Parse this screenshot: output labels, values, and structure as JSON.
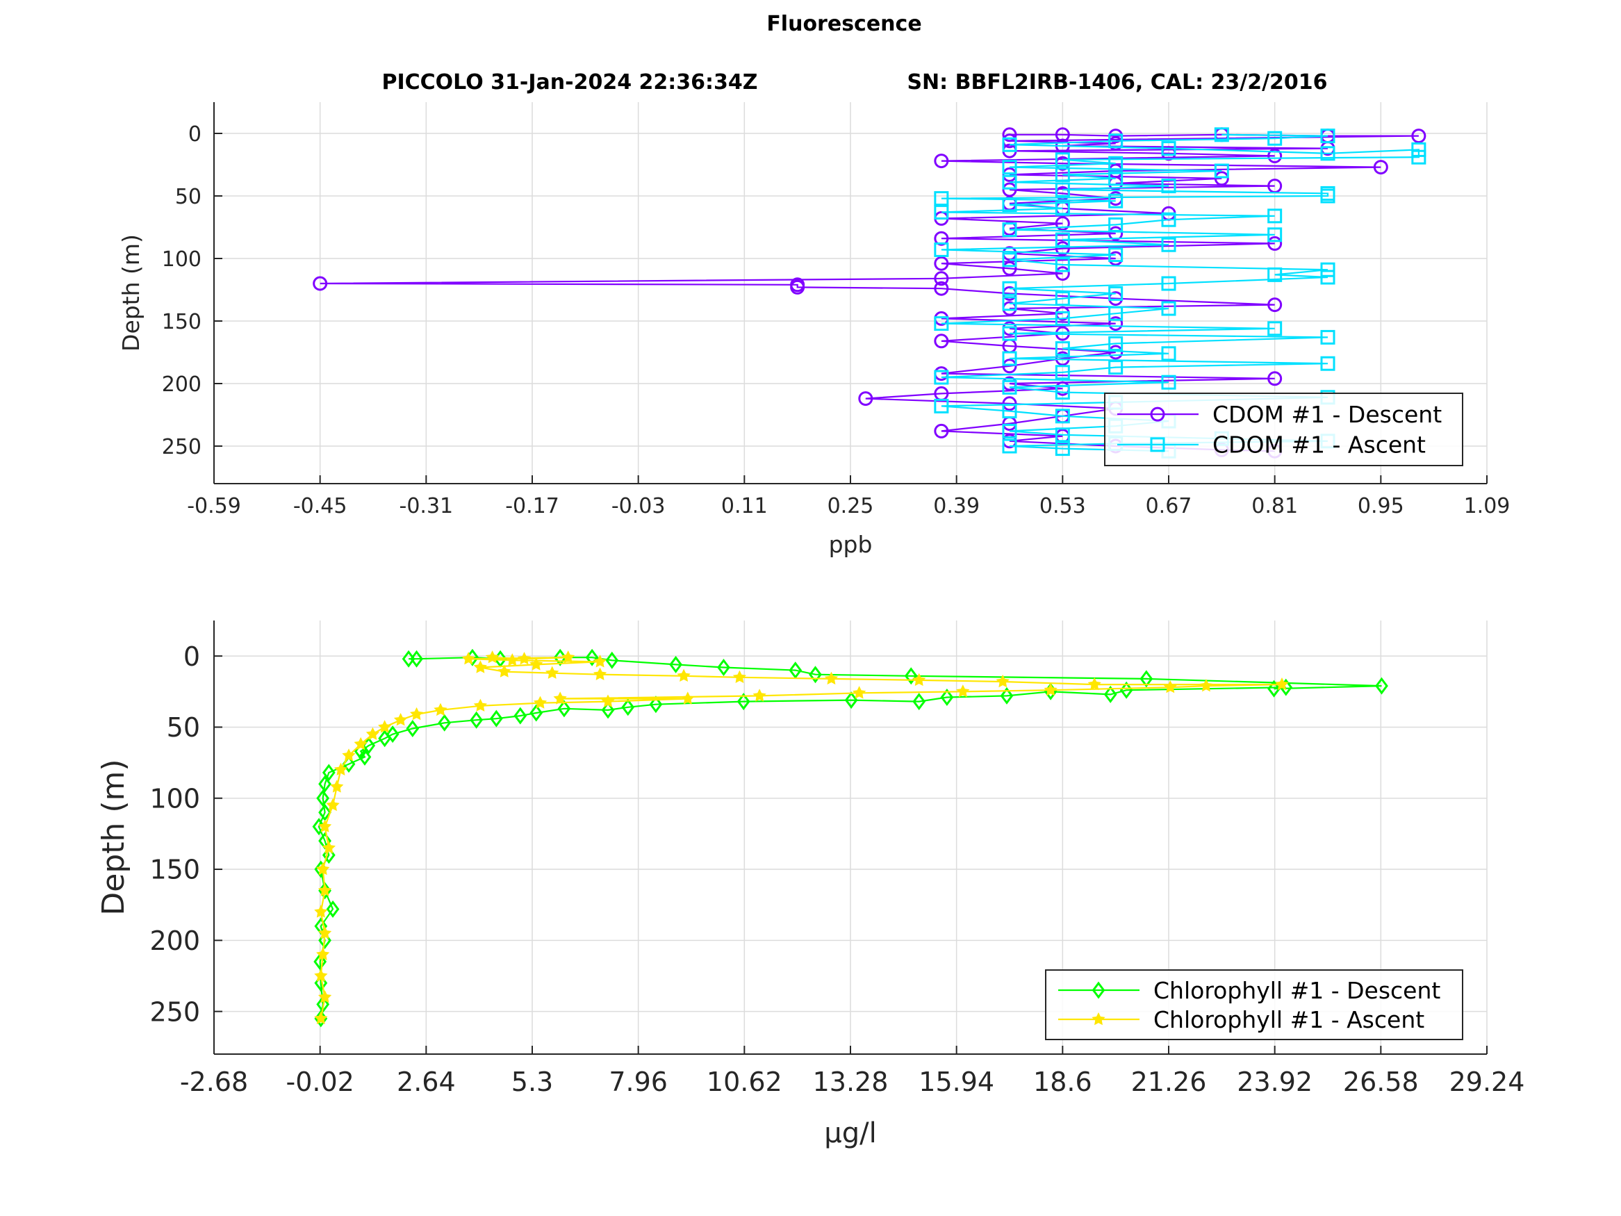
{
  "figure": {
    "title": "Fluorescence",
    "subtitle_left": "PICCOLO 31-Jan-2024 22:36:34Z",
    "subtitle_right": "SN: BBFL2IRB-1406, CAL: 23/2/2016"
  },
  "chart_data": [
    {
      "type": "line",
      "xlabel": "ppb",
      "ylabel": "Depth (m)",
      "xlim": [
        -0.59,
        1.09
      ],
      "ylim": [
        280,
        -25
      ],
      "y_reversed": true,
      "grid": true,
      "xticks": [
        "-0.59",
        "-0.45",
        "-0.31",
        "-0.17",
        "-0.03",
        "0.11",
        "0.25",
        "0.39",
        "0.53",
        "0.67",
        "0.81",
        "0.95",
        "1.09"
      ],
      "yticks": [
        "0",
        "50",
        "100",
        "150",
        "200",
        "250"
      ],
      "legend_position": "bottom-right",
      "series": [
        {
          "name": "CDOM #1 - Descent",
          "color": "#8000ff",
          "marker": "circle",
          "points": [
            [
              0.46,
              1
            ],
            [
              0.53,
              1
            ],
            [
              0.6,
              2
            ],
            [
              0.74,
              1
            ],
            [
              0.88,
              2
            ],
            [
              1.0,
              2
            ],
            [
              0.46,
              6
            ],
            [
              0.6,
              8
            ],
            [
              0.53,
              10
            ],
            [
              0.88,
              12
            ],
            [
              0.46,
              14
            ],
            [
              0.67,
              16
            ],
            [
              0.81,
              18
            ],
            [
              0.37,
              22
            ],
            [
              0.53,
              24
            ],
            [
              0.95,
              27
            ],
            [
              0.6,
              30
            ],
            [
              0.46,
              33
            ],
            [
              0.74,
              36
            ],
            [
              0.6,
              40
            ],
            [
              0.81,
              42
            ],
            [
              0.46,
              45
            ],
            [
              0.53,
              48
            ],
            [
              0.6,
              52
            ],
            [
              0.46,
              56
            ],
            [
              0.53,
              60
            ],
            [
              0.67,
              64
            ],
            [
              0.37,
              68
            ],
            [
              0.53,
              72
            ],
            [
              0.46,
              76
            ],
            [
              0.6,
              80
            ],
            [
              0.37,
              84
            ],
            [
              0.81,
              88
            ],
            [
              0.53,
              92
            ],
            [
              0.46,
              96
            ],
            [
              0.6,
              100
            ],
            [
              0.37,
              104
            ],
            [
              0.46,
              108
            ],
            [
              0.53,
              112
            ],
            [
              0.37,
              116
            ],
            [
              -0.45,
              120
            ],
            [
              0.18,
              121
            ],
            [
              0.18,
              123
            ],
            [
              0.37,
              124
            ],
            [
              0.46,
              128
            ],
            [
              0.6,
              132
            ],
            [
              0.81,
              137
            ],
            [
              0.46,
              140
            ],
            [
              0.53,
              144
            ],
            [
              0.37,
              148
            ],
            [
              0.6,
              152
            ],
            [
              0.46,
              156
            ],
            [
              0.53,
              160
            ],
            [
              0.37,
              166
            ],
            [
              0.46,
              170
            ],
            [
              0.6,
              175
            ],
            [
              0.53,
              180
            ],
            [
              0.46,
              186
            ],
            [
              0.37,
              192
            ],
            [
              0.81,
              196
            ],
            [
              0.46,
              200
            ],
            [
              0.53,
              204
            ],
            [
              0.37,
              208
            ],
            [
              0.27,
              212
            ],
            [
              0.46,
              216
            ],
            [
              0.6,
              220
            ],
            [
              0.53,
              226
            ],
            [
              0.46,
              232
            ],
            [
              0.37,
              238
            ],
            [
              0.53,
              242
            ],
            [
              0.46,
              246
            ],
            [
              0.6,
              250
            ],
            [
              0.74,
              253
            ],
            [
              0.81,
              254
            ]
          ]
        },
        {
          "name": "CDOM #1 - Ascent",
          "color": "#00e0ff",
          "marker": "square",
          "points": [
            [
              0.67,
              254
            ],
            [
              0.53,
              252
            ],
            [
              0.46,
              250
            ],
            [
              0.6,
              248
            ],
            [
              0.88,
              246
            ],
            [
              0.74,
              244
            ],
            [
              0.53,
              241
            ],
            [
              0.46,
              238
            ],
            [
              0.6,
              234
            ],
            [
              0.67,
              230
            ],
            [
              0.53,
              226
            ],
            [
              0.46,
              222
            ],
            [
              0.37,
              218
            ],
            [
              0.6,
              215
            ],
            [
              0.88,
              211
            ],
            [
              0.53,
              207
            ],
            [
              0.46,
              203
            ],
            [
              0.67,
              199
            ],
            [
              0.37,
              195
            ],
            [
              0.53,
              191
            ],
            [
              0.6,
              187
            ],
            [
              0.88,
              184
            ],
            [
              0.46,
              180
            ],
            [
              0.67,
              176
            ],
            [
              0.53,
              172
            ],
            [
              0.6,
              168
            ],
            [
              0.88,
              163
            ],
            [
              0.46,
              160
            ],
            [
              0.81,
              156
            ],
            [
              0.37,
              152
            ],
            [
              0.53,
              148
            ],
            [
              0.6,
              144
            ],
            [
              0.67,
              140
            ],
            [
              0.46,
              136
            ],
            [
              0.53,
              132
            ],
            [
              0.6,
              128
            ],
            [
              0.46,
              124
            ],
            [
              0.67,
              120
            ],
            [
              0.88,
              115
            ],
            [
              0.81,
              113
            ],
            [
              0.88,
              109
            ],
            [
              0.53,
              105
            ],
            [
              0.46,
              101
            ],
            [
              0.6,
              97
            ],
            [
              0.37,
              93
            ],
            [
              0.67,
              89
            ],
            [
              0.53,
              85
            ],
            [
              0.81,
              81
            ],
            [
              0.46,
              77
            ],
            [
              0.6,
              73
            ],
            [
              0.67,
              69
            ],
            [
              0.81,
              66
            ],
            [
              0.37,
              63
            ],
            [
              0.53,
              60
            ],
            [
              0.46,
              57
            ],
            [
              0.6,
              54
            ],
            [
              0.37,
              52
            ],
            [
              0.88,
              50
            ],
            [
              0.88,
              48
            ],
            [
              0.53,
              45
            ],
            [
              0.67,
              42
            ],
            [
              0.46,
              39
            ],
            [
              0.6,
              36
            ],
            [
              0.53,
              33
            ],
            [
              0.74,
              30
            ],
            [
              0.46,
              27
            ],
            [
              0.6,
              24
            ],
            [
              0.53,
              21
            ],
            [
              1.0,
              19
            ],
            [
              1.0,
              13
            ],
            [
              0.88,
              16
            ],
            [
              0.67,
              12
            ],
            [
              0.46,
              9
            ],
            [
              0.6,
              6
            ],
            [
              0.81,
              4
            ],
            [
              0.88,
              2
            ],
            [
              0.74,
              1
            ]
          ]
        }
      ]
    },
    {
      "type": "line",
      "xlabel": "μg/l",
      "ylabel": "Depth (m)",
      "xlim": [
        -2.68,
        29.24
      ],
      "ylim": [
        280,
        -25
      ],
      "y_reversed": true,
      "grid": true,
      "xticks": [
        "-2.68",
        "-0.02",
        "2.64",
        "5.3",
        "7.96",
        "10.62",
        "13.28",
        "15.94",
        "18.6",
        "21.26",
        "23.92",
        "26.58",
        "29.24"
      ],
      "yticks": [
        "0",
        "50",
        "100",
        "150",
        "200",
        "250"
      ],
      "legend_position": "bottom-right",
      "series": [
        {
          "name": "Chlorophyll #1 - Descent",
          "color": "#00ff00",
          "marker": "diamond",
          "points": [
            [
              2.2,
              2
            ],
            [
              2.4,
              2
            ],
            [
              3.8,
              1
            ],
            [
              4.5,
              2
            ],
            [
              6.0,
              1
            ],
            [
              6.8,
              1
            ],
            [
              7.3,
              3
            ],
            [
              8.9,
              6
            ],
            [
              10.1,
              8
            ],
            [
              11.9,
              10
            ],
            [
              12.4,
              13
            ],
            [
              14.8,
              14
            ],
            [
              20.7,
              16
            ],
            [
              26.6,
              21
            ],
            [
              23.9,
              23
            ],
            [
              24.2,
              22
            ],
            [
              20.2,
              24
            ],
            [
              19.8,
              27
            ],
            [
              18.3,
              25
            ],
            [
              17.2,
              28
            ],
            [
              15.7,
              29
            ],
            [
              15.0,
              32
            ],
            [
              13.3,
              31
            ],
            [
              10.6,
              32
            ],
            [
              8.4,
              34
            ],
            [
              7.7,
              36
            ],
            [
              7.2,
              38
            ],
            [
              6.1,
              37
            ],
            [
              5.4,
              40
            ],
            [
              5.0,
              42
            ],
            [
              4.4,
              44
            ],
            [
              3.9,
              45
            ],
            [
              3.1,
              47
            ],
            [
              2.3,
              51
            ],
            [
              1.8,
              55
            ],
            [
              1.6,
              58
            ],
            [
              1.2,
              63
            ],
            [
              1.0,
              67
            ],
            [
              1.1,
              71
            ],
            [
              0.7,
              76
            ],
            [
              0.2,
              82
            ],
            [
              0.1,
              90
            ],
            [
              0.05,
              100
            ],
            [
              0.1,
              110
            ],
            [
              -0.05,
              120
            ],
            [
              0.1,
              130
            ],
            [
              0.2,
              140
            ],
            [
              0.0,
              150
            ],
            [
              0.1,
              165
            ],
            [
              0.3,
              178
            ],
            [
              0.0,
              190
            ],
            [
              0.1,
              200
            ],
            [
              -0.02,
              215
            ],
            [
              0.0,
              230
            ],
            [
              0.05,
              245
            ],
            [
              0.0,
              255
            ]
          ]
        },
        {
          "name": "Chlorophyll #1 - Ascent",
          "color": "#ffe600",
          "marker": "star",
          "points": [
            [
              0.0,
              255
            ],
            [
              0.1,
              240
            ],
            [
              0.0,
              225
            ],
            [
              0.05,
              210
            ],
            [
              0.1,
              195
            ],
            [
              0.0,
              180
            ],
            [
              0.1,
              165
            ],
            [
              0.05,
              150
            ],
            [
              0.2,
              135
            ],
            [
              0.1,
              120
            ],
            [
              0.3,
              105
            ],
            [
              0.4,
              92
            ],
            [
              0.5,
              80
            ],
            [
              0.7,
              70
            ],
            [
              1.0,
              62
            ],
            [
              1.3,
              55
            ],
            [
              1.6,
              50
            ],
            [
              2.0,
              45
            ],
            [
              2.4,
              41
            ],
            [
              3.0,
              38
            ],
            [
              4.0,
              35
            ],
            [
              5.5,
              33
            ],
            [
              7.2,
              32
            ],
            [
              9.2,
              30
            ],
            [
              6.0,
              30
            ],
            [
              11.0,
              28
            ],
            [
              13.5,
              26
            ],
            [
              16.1,
              25
            ],
            [
              18.3,
              24
            ],
            [
              21.3,
              22
            ],
            [
              22.2,
              21
            ],
            [
              24.1,
              20
            ],
            [
              19.4,
              20
            ],
            [
              17.1,
              18
            ],
            [
              15.0,
              17
            ],
            [
              12.8,
              16
            ],
            [
              10.5,
              15
            ],
            [
              9.1,
              14
            ],
            [
              7.0,
              13
            ],
            [
              5.8,
              12
            ],
            [
              4.6,
              11
            ],
            [
              4.0,
              8
            ],
            [
              5.4,
              6
            ],
            [
              7.0,
              4
            ],
            [
              4.8,
              3
            ],
            [
              3.7,
              2
            ],
            [
              6.2,
              1
            ],
            [
              5.1,
              2
            ],
            [
              4.3,
              1
            ]
          ]
        }
      ]
    }
  ]
}
